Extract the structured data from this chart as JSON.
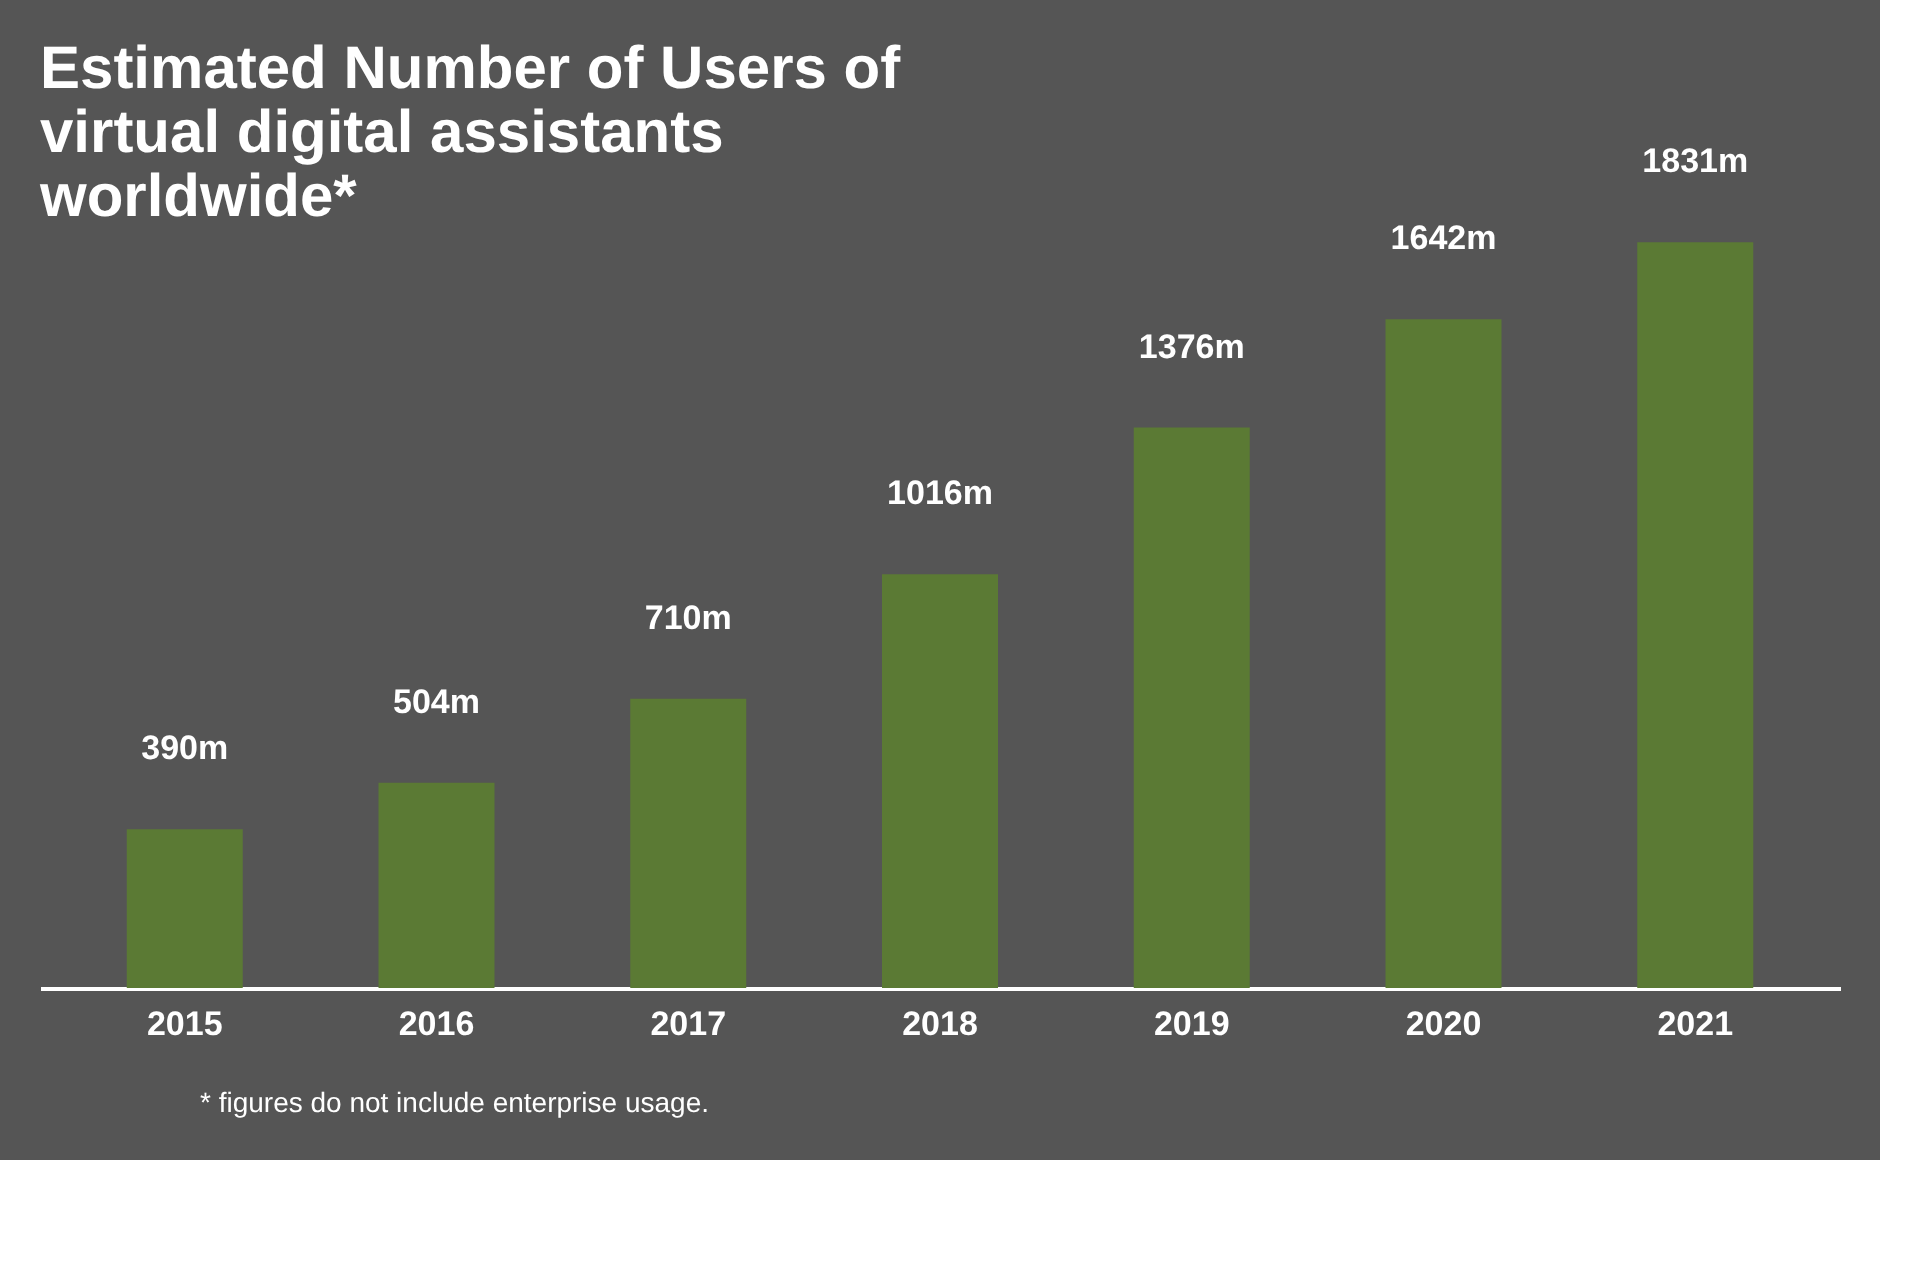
{
  "chart_data": {
    "type": "bar",
    "title": "Estimated Number of Users of virtual digital assistants worldwide*",
    "categories": [
      "2015",
      "2016",
      "2017",
      "2018",
      "2019",
      "2020",
      "2021"
    ],
    "values": [
      390,
      504,
      710,
      1016,
      1376,
      1642,
      1831
    ],
    "value_labels": [
      "390m",
      "504m",
      "710m",
      "1016m",
      "1376m",
      "1642m",
      "1831m"
    ],
    "color": "#5b7a34",
    "grid": false,
    "annotations": [
      "* figures do not include enterprise usage."
    ]
  }
}
